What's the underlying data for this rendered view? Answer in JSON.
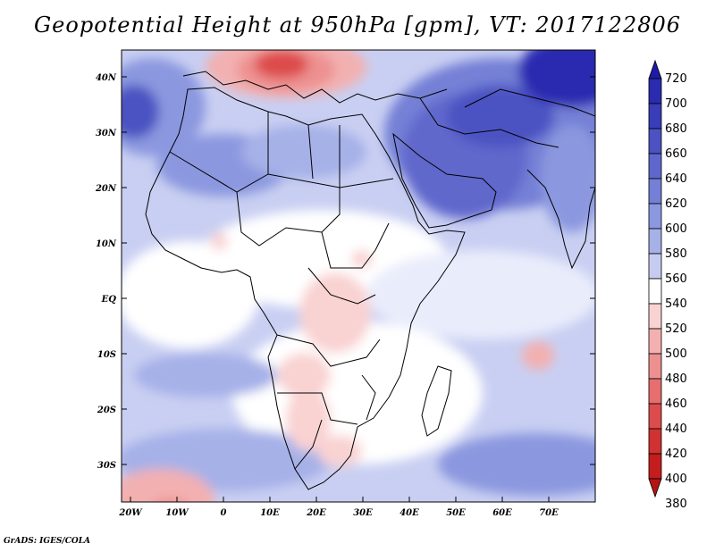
{
  "title": "Geopotential Height at 950hPa [gpm], VT: 2017122806",
  "credit": "GrADS: IGES/COLA",
  "axes": {
    "lat_labels": [
      "40N",
      "30N",
      "20N",
      "10N",
      "EQ",
      "10S",
      "20S",
      "30S"
    ],
    "lon_labels": [
      "20W",
      "10W",
      "0",
      "10E",
      "20E",
      "30E",
      "40E",
      "50E",
      "60E",
      "70E"
    ]
  },
  "colorbar": {
    "levels": [
      "720",
      "700",
      "680",
      "660",
      "640",
      "620",
      "600",
      "580",
      "560",
      "540",
      "520",
      "500",
      "480",
      "460",
      "440",
      "420",
      "400",
      "380"
    ],
    "colors": [
      "#1e1aa8",
      "#2b2bb0",
      "#3a3db8",
      "#4c52c2",
      "#6067cc",
      "#7480d6",
      "#8b98df",
      "#a6b1e8",
      "#c6ccf1",
      "#ffffff",
      "#f9d2d2",
      "#f3b0b0",
      "#ed9090",
      "#e66e6e",
      "#dd4c4c",
      "#d03232",
      "#c41d1d",
      "#b51414"
    ]
  }
}
